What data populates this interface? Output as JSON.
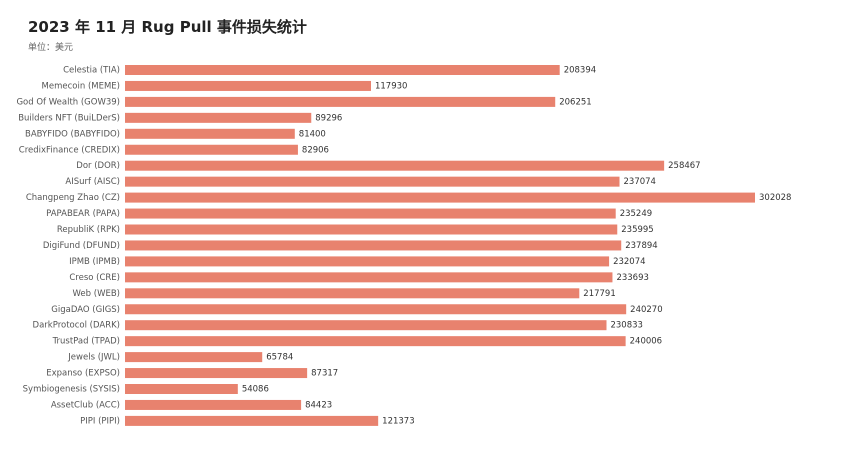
{
  "chart_data": {
    "type": "bar",
    "orientation": "horizontal",
    "title": "2023 年 11 月 Rug Pull 事件损失统计",
    "subtitle": "单位：美元",
    "categories": [
      "Celestia (TIA)",
      "Memecoin (MEME)",
      "God Of Wealth (GOW39)",
      "Builders NFT (BuiLDerS)",
      "BABYFIDO (BABYFIDO)",
      "CredixFinance (CREDIX)",
      "Dor (DOR)",
      "AISurf (AISC)",
      "Changpeng Zhao (CZ)",
      "PAPABEAR (PAPA)",
      "RepubliK (RPK)",
      "DigiFund (DFUND)",
      "IPMB (IPMB)",
      "Creso (CRE)",
      "Web (WEB)",
      "GigaDAO (GIGS)",
      "DarkProtocol (DARK)",
      "TrustPad (TPAD)",
      "Jewels (JWL)",
      "Expanso (EXPSO)",
      "Symbiogenesis (SYSIS)",
      "AssetClub (ACC)",
      "PIPI (PIPI)"
    ],
    "values": [
      208394,
      117930,
      206251,
      89296,
      81400,
      82906,
      258467,
      237074,
      302028,
      235249,
      235995,
      237894,
      232074,
      233693,
      217791,
      240270,
      230833,
      240006,
      65784,
      87317,
      54086,
      84423,
      121373
    ],
    "bar_color": "#e8826e",
    "grid": false,
    "legend": "none"
  }
}
